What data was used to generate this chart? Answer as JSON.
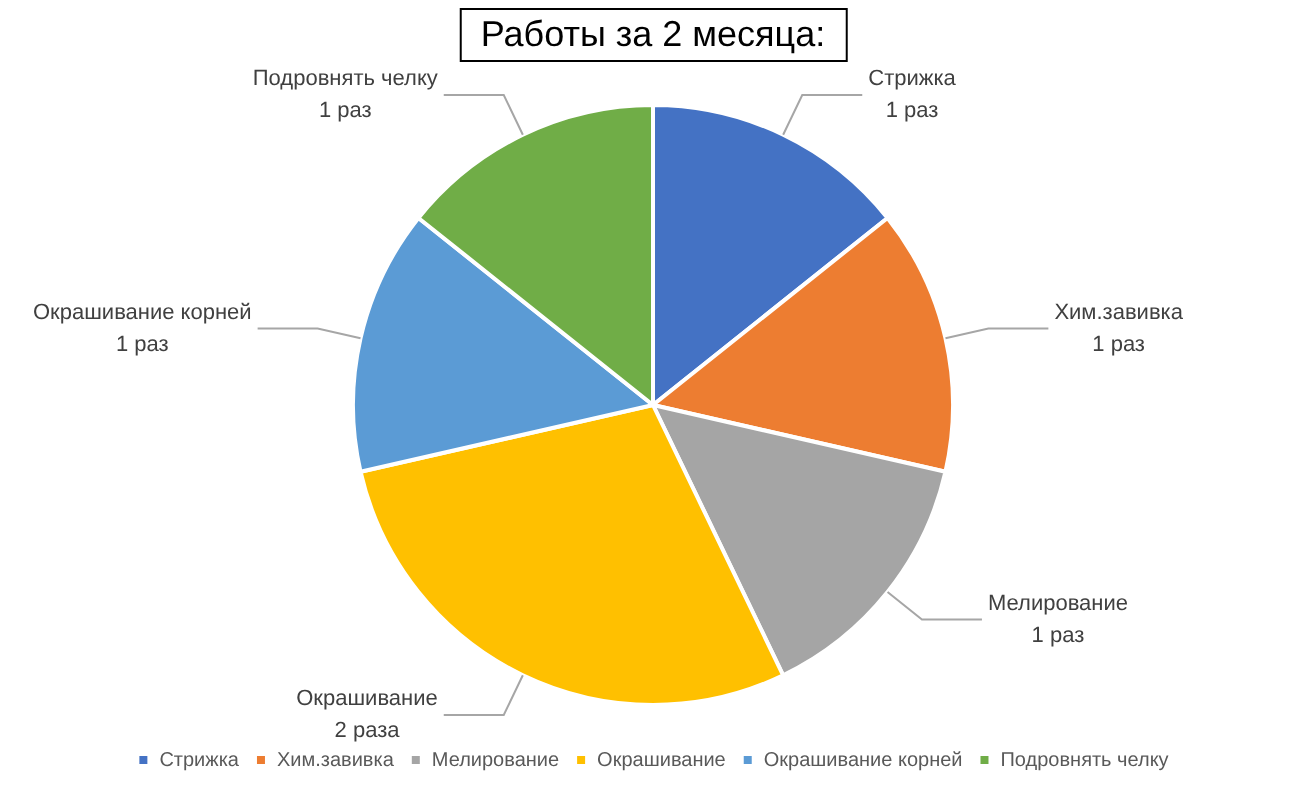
{
  "chart_data": {
    "type": "pie",
    "title": "Работы за 2 месяца:",
    "categories": [
      "Стрижка",
      "Хим.завивка",
      "Мелирование",
      "Окрашивание",
      "Окрашивание корней",
      "Подровнять челку"
    ],
    "values": [
      1,
      1,
      1,
      2,
      1,
      1
    ],
    "value_labels": [
      "1 раз",
      "1 раз",
      "1 раз",
      "2 раза",
      "1 раз",
      "1 раз"
    ],
    "colors": [
      "#4472c4",
      "#ed7d31",
      "#a5a5a5",
      "#ffc000",
      "#5b9bd5",
      "#70ad47"
    ],
    "legend": "bottom"
  }
}
